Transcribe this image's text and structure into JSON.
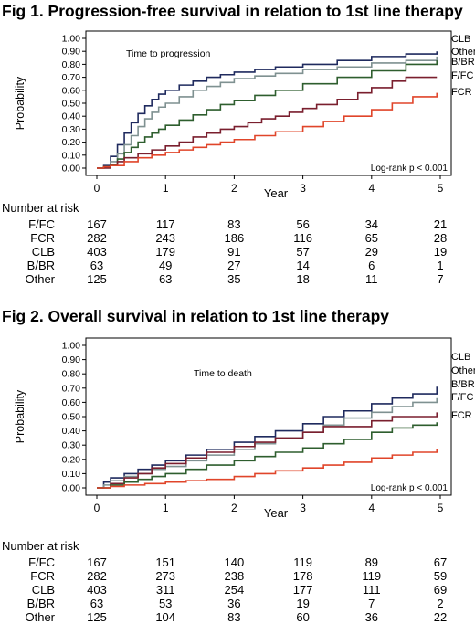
{
  "figures": [
    {
      "title": "Fig 1. Progression-free survival in relation to 1st line therapy",
      "risk_table_title": "Number at risk",
      "risk_table": [
        {
          "label": "F/FC",
          "values": [
            "167",
            "117",
            "83",
            "56",
            "34",
            "21"
          ]
        },
        {
          "label": "FCR",
          "values": [
            "282",
            "243",
            "186",
            "116",
            "65",
            "28"
          ]
        },
        {
          "label": "CLB",
          "values": [
            "403",
            "179",
            "91",
            "57",
            "29",
            "19"
          ]
        },
        {
          "label": "B/BR",
          "values": [
            "63",
            "49",
            "27",
            "14",
            "6",
            "1"
          ]
        },
        {
          "label": "Other",
          "values": [
            "125",
            "63",
            "35",
            "18",
            "11",
            "7"
          ]
        }
      ]
    },
    {
      "title": "Fig 2. Overall survival in relation to 1st line therapy",
      "risk_table_title": "Number  at risk",
      "risk_table": [
        {
          "label": "F/FC",
          "values": [
            "167",
            "151",
            "140",
            "119",
            "89",
            "67"
          ]
        },
        {
          "label": "FCR",
          "values": [
            "282",
            "273",
            "238",
            "178",
            "119",
            "59"
          ]
        },
        {
          "label": "CLB",
          "values": [
            "403",
            "311",
            "254",
            "177",
            "111",
            "69"
          ]
        },
        {
          "label": "B/BR",
          "values": [
            "63",
            "53",
            "36",
            "19",
            "7",
            "2"
          ]
        },
        {
          "label": "Other",
          "values": [
            "125",
            "104",
            "83",
            "60",
            "36",
            "22"
          ]
        }
      ]
    }
  ],
  "chart_data": [
    {
      "type": "line",
      "title": "Fig 1. Progression-free survival in relation to 1st line therapy",
      "xlabel": "Year",
      "ylabel": "Probability",
      "xlim": [
        0,
        5
      ],
      "ylim": [
        0,
        1
      ],
      "xticks": [
        "0",
        "1",
        "2",
        "3",
        "4",
        "5"
      ],
      "yticks": [
        "0.00",
        "0.10",
        "0.20",
        "0.30",
        "0.40",
        "0.50",
        "0.60",
        "0.70",
        "0.80",
        "0.90",
        "1.00"
      ],
      "annotation": "Time to progression",
      "stat_text": "Log-rank p < 0.001",
      "grid": false,
      "legend": "right",
      "series": [
        {
          "name": "CLB",
          "color": "#1f2a5e",
          "points": [
            [
              0,
              0
            ],
            [
              0.1,
              0.02
            ],
            [
              0.2,
              0.09
            ],
            [
              0.3,
              0.18
            ],
            [
              0.4,
              0.27
            ],
            [
              0.5,
              0.35
            ],
            [
              0.6,
              0.42
            ],
            [
              0.7,
              0.48
            ],
            [
              0.8,
              0.53
            ],
            [
              0.9,
              0.57
            ],
            [
              1,
              0.6
            ],
            [
              1.2,
              0.64
            ],
            [
              1.4,
              0.67
            ],
            [
              1.6,
              0.7
            ],
            [
              1.8,
              0.72
            ],
            [
              2,
              0.74
            ],
            [
              2.3,
              0.76
            ],
            [
              2.6,
              0.78
            ],
            [
              3,
              0.8
            ],
            [
              3.5,
              0.83
            ],
            [
              4,
              0.86
            ],
            [
              4.5,
              0.88
            ],
            [
              4.95,
              0.9
            ]
          ]
        },
        {
          "name": "Other",
          "color": "#7f9191",
          "points": [
            [
              0,
              0
            ],
            [
              0.1,
              0.01
            ],
            [
              0.2,
              0.05
            ],
            [
              0.3,
              0.11
            ],
            [
              0.4,
              0.18
            ],
            [
              0.5,
              0.25
            ],
            [
              0.6,
              0.32
            ],
            [
              0.7,
              0.38
            ],
            [
              0.8,
              0.43
            ],
            [
              0.9,
              0.47
            ],
            [
              1,
              0.5
            ],
            [
              1.2,
              0.55
            ],
            [
              1.4,
              0.6
            ],
            [
              1.6,
              0.63
            ],
            [
              1.8,
              0.66
            ],
            [
              2,
              0.69
            ],
            [
              2.3,
              0.71
            ],
            [
              2.6,
              0.73
            ],
            [
              3,
              0.76
            ],
            [
              3.5,
              0.78
            ],
            [
              4,
              0.81
            ],
            [
              4.5,
              0.83
            ],
            [
              4.95,
              0.86
            ]
          ]
        },
        {
          "name": "B/BR",
          "color": "#2e5e2e",
          "points": [
            [
              0,
              0
            ],
            [
              0.1,
              0.01
            ],
            [
              0.2,
              0.03
            ],
            [
              0.3,
              0.07
            ],
            [
              0.4,
              0.12
            ],
            [
              0.5,
              0.16
            ],
            [
              0.6,
              0.2
            ],
            [
              0.7,
              0.24
            ],
            [
              0.8,
              0.27
            ],
            [
              0.9,
              0.3
            ],
            [
              1,
              0.33
            ],
            [
              1.2,
              0.37
            ],
            [
              1.4,
              0.41
            ],
            [
              1.6,
              0.45
            ],
            [
              1.8,
              0.49
            ],
            [
              2,
              0.52
            ],
            [
              2.3,
              0.56
            ],
            [
              2.6,
              0.6
            ],
            [
              3,
              0.65
            ],
            [
              3.5,
              0.7
            ],
            [
              4,
              0.75
            ],
            [
              4.5,
              0.8
            ],
            [
              4.95,
              0.83
            ]
          ]
        },
        {
          "name": "F/FC",
          "color": "#7a1f2e",
          "points": [
            [
              0,
              0
            ],
            [
              0.2,
              0.02
            ],
            [
              0.3,
              0.05
            ],
            [
              0.4,
              0.08
            ],
            [
              0.6,
              0.11
            ],
            [
              0.8,
              0.14
            ],
            [
              1,
              0.17
            ],
            [
              1.2,
              0.2
            ],
            [
              1.4,
              0.24
            ],
            [
              1.6,
              0.27
            ],
            [
              1.8,
              0.3
            ],
            [
              2,
              0.32
            ],
            [
              2.2,
              0.35
            ],
            [
              2.4,
              0.38
            ],
            [
              2.6,
              0.4
            ],
            [
              2.8,
              0.43
            ],
            [
              3,
              0.46
            ],
            [
              3.2,
              0.49
            ],
            [
              3.5,
              0.53
            ],
            [
              3.8,
              0.58
            ],
            [
              4,
              0.62
            ],
            [
              4.3,
              0.67
            ],
            [
              4.5,
              0.7
            ],
            [
              4.95,
              0.7
            ]
          ]
        },
        {
          "name": "FCR",
          "color": "#e0452a",
          "points": [
            [
              0,
              0
            ],
            [
              0.1,
              0.01
            ],
            [
              0.2,
              0.02
            ],
            [
              0.4,
              0.05
            ],
            [
              0.6,
              0.08
            ],
            [
              0.8,
              0.1
            ],
            [
              1,
              0.12
            ],
            [
              1.2,
              0.14
            ],
            [
              1.4,
              0.16
            ],
            [
              1.6,
              0.18
            ],
            [
              1.8,
              0.2
            ],
            [
              2,
              0.22
            ],
            [
              2.3,
              0.25
            ],
            [
              2.6,
              0.28
            ],
            [
              3,
              0.32
            ],
            [
              3.3,
              0.36
            ],
            [
              3.6,
              0.4
            ],
            [
              4,
              0.45
            ],
            [
              4.3,
              0.5
            ],
            [
              4.6,
              0.55
            ],
            [
              4.95,
              0.58
            ]
          ]
        }
      ]
    },
    {
      "type": "line",
      "title": "Fig 2. Overall survival in relation to 1st line therapy",
      "xlabel": "Year",
      "ylabel": "Probability",
      "xlim": [
        0,
        5
      ],
      "ylim": [
        0,
        1
      ],
      "xticks": [
        "0",
        "1",
        "2",
        "3",
        "4",
        "5"
      ],
      "yticks": [
        "0.00",
        "0.10",
        "0.20",
        "0.30",
        "0.40",
        "0.50",
        "0.60",
        "0.70",
        "0.80",
        "0.90",
        "1.00"
      ],
      "annotation": "Time to death",
      "stat_text": "Log-rank p < 0.001",
      "grid": false,
      "legend": "right",
      "series": [
        {
          "name": "CLB",
          "color": "#1f2a5e",
          "points": [
            [
              0,
              0
            ],
            [
              0.1,
              0.04
            ],
            [
              0.2,
              0.07
            ],
            [
              0.4,
              0.1
            ],
            [
              0.6,
              0.13
            ],
            [
              0.8,
              0.16
            ],
            [
              1,
              0.19
            ],
            [
              1.3,
              0.23
            ],
            [
              1.6,
              0.27
            ],
            [
              2,
              0.32
            ],
            [
              2.3,
              0.36
            ],
            [
              2.6,
              0.4
            ],
            [
              3,
              0.45
            ],
            [
              3.3,
              0.5
            ],
            [
              3.6,
              0.54
            ],
            [
              4,
              0.59
            ],
            [
              4.3,
              0.63
            ],
            [
              4.6,
              0.66
            ],
            [
              4.95,
              0.71
            ]
          ]
        },
        {
          "name": "Other",
          "color": "#7f9191",
          "points": [
            [
              0,
              0
            ],
            [
              0.1,
              0.02
            ],
            [
              0.2,
              0.05
            ],
            [
              0.4,
              0.08
            ],
            [
              0.6,
              0.1
            ],
            [
              0.8,
              0.13
            ],
            [
              1,
              0.15
            ],
            [
              1.3,
              0.19
            ],
            [
              1.6,
              0.23
            ],
            [
              2,
              0.27
            ],
            [
              2.3,
              0.31
            ],
            [
              2.6,
              0.35
            ],
            [
              3,
              0.39
            ],
            [
              3.3,
              0.44
            ],
            [
              3.6,
              0.49
            ],
            [
              4,
              0.53
            ],
            [
              4.3,
              0.57
            ],
            [
              4.6,
              0.6
            ],
            [
              4.95,
              0.63
            ]
          ]
        },
        {
          "name": "B/BR",
          "color": "#7a1f2e",
          "points": [
            [
              0,
              0
            ],
            [
              0.2,
              0.03
            ],
            [
              0.4,
              0.07
            ],
            [
              0.6,
              0.1
            ],
            [
              0.8,
              0.14
            ],
            [
              1,
              0.17
            ],
            [
              1.3,
              0.21
            ],
            [
              1.6,
              0.25
            ],
            [
              2,
              0.29
            ],
            [
              2.3,
              0.32
            ],
            [
              2.6,
              0.35
            ],
            [
              3,
              0.39
            ],
            [
              3.3,
              0.43
            ],
            [
              3.6,
              0.43
            ],
            [
              4,
              0.47
            ],
            [
              4.3,
              0.5
            ],
            [
              4.95,
              0.53
            ]
          ]
        },
        {
          "name": "F/FC",
          "color": "#2e5e2e",
          "points": [
            [
              0,
              0
            ],
            [
              0.2,
              0.02
            ],
            [
              0.4,
              0.04
            ],
            [
              0.6,
              0.06
            ],
            [
              0.8,
              0.08
            ],
            [
              1,
              0.1
            ],
            [
              1.3,
              0.13
            ],
            [
              1.6,
              0.16
            ],
            [
              2,
              0.19
            ],
            [
              2.3,
              0.22
            ],
            [
              2.6,
              0.25
            ],
            [
              3,
              0.28
            ],
            [
              3.3,
              0.31
            ],
            [
              3.6,
              0.34
            ],
            [
              4,
              0.39
            ],
            [
              4.3,
              0.42
            ],
            [
              4.6,
              0.44
            ],
            [
              4.95,
              0.46
            ]
          ]
        },
        {
          "name": "FCR",
          "color": "#e0452a",
          "points": [
            [
              0,
              0
            ],
            [
              0.2,
              0.01
            ],
            [
              0.4,
              0.02
            ],
            [
              0.7,
              0.03
            ],
            [
              1,
              0.04
            ],
            [
              1.3,
              0.05
            ],
            [
              1.6,
              0.06
            ],
            [
              2,
              0.08
            ],
            [
              2.3,
              0.1
            ],
            [
              2.6,
              0.12
            ],
            [
              3,
              0.14
            ],
            [
              3.3,
              0.16
            ],
            [
              3.6,
              0.18
            ],
            [
              4,
              0.21
            ],
            [
              4.3,
              0.23
            ],
            [
              4.6,
              0.25
            ],
            [
              4.95,
              0.27
            ]
          ]
        }
      ]
    }
  ]
}
